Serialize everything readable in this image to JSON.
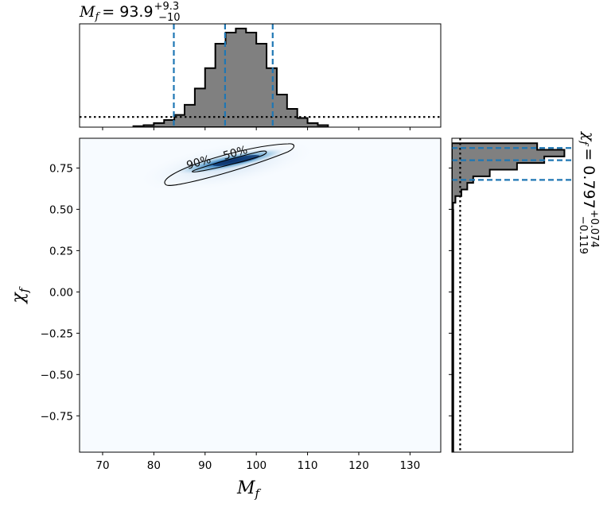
{
  "chart_data": {
    "type": "corner",
    "top_title": {
      "prefix": "M",
      "sub": "f",
      "value": "= 93.9",
      "plus": "+9.3",
      "minus": "−10"
    },
    "right_title": {
      "prefix": "χ",
      "sub": "f",
      "value": "= 0.797",
      "plus": "+0.074",
      "minus": "−0.119"
    },
    "xlabel": {
      "symbol": "M",
      "sub": "f"
    },
    "ylabel": {
      "symbol": "χ",
      "sub": "f"
    },
    "xlim": [
      65.5,
      136
    ],
    "ylim": [
      -0.97,
      0.93
    ],
    "x_ticks": [
      70,
      80,
      90,
      100,
      110,
      120,
      130
    ],
    "x_tick_labels": [
      "70",
      "80",
      "90",
      "100",
      "110",
      "120",
      "130"
    ],
    "y_ticks": [
      0.75,
      0.5,
      0.25,
      0.0,
      -0.25,
      -0.5,
      -0.75
    ],
    "y_tick_labels": [
      "0.75",
      "0.50",
      "0.25",
      "0.00",
      "−0.25",
      "−0.50",
      "−0.75"
    ],
    "mf_quantiles": [
      83.9,
      93.9,
      103.2
    ],
    "chi_quantiles": [
      0.678,
      0.797,
      0.871
    ],
    "mf_hist": {
      "edges": [
        76,
        78,
        80,
        82,
        84,
        86,
        88,
        90,
        92,
        94,
        96,
        98,
        100,
        102,
        104,
        106,
        108,
        110,
        112,
        114
      ],
      "values": [
        0.01,
        0.02,
        0.04,
        0.07,
        0.12,
        0.22,
        0.38,
        0.58,
        0.82,
        0.93,
        0.97,
        0.93,
        0.82,
        0.58,
        0.32,
        0.18,
        0.09,
        0.04,
        0.02
      ]
    },
    "mf_prior_level": 0.1,
    "chi_hist": {
      "edges": [
        0.5,
        0.54,
        0.58,
        0.62,
        0.66,
        0.7,
        0.74,
        0.78,
        0.82,
        0.86,
        0.9
      ],
      "values": [
        0.01,
        0.03,
        0.08,
        0.13,
        0.18,
        0.32,
        0.55,
        0.78,
        0.95,
        0.72
      ]
    },
    "chi_prior_level": 0.07,
    "contour_labels": [
      "90%",
      "50%"
    ],
    "colors": {
      "hist_fill": "#808080",
      "quantile": "#1f77b4",
      "density": "#08306b",
      "background": "#f7fbff"
    }
  }
}
